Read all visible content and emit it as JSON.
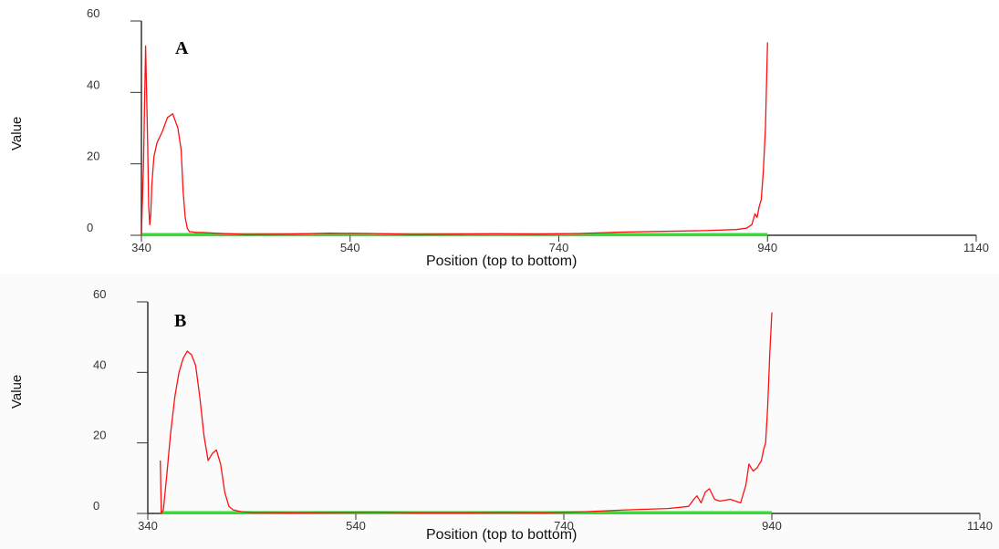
{
  "chart_data": [
    {
      "type": "line",
      "panel": "A",
      "xlabel": "Position (top to bottom)",
      "ylabel": "Value",
      "xlim": [
        340,
        1140
      ],
      "ylim": [
        0,
        60
      ],
      "xticks": [
        340,
        540,
        740,
        940,
        1140
      ],
      "yticks": [
        0,
        20,
        40,
        60
      ],
      "colors": {
        "profile": "#ff1010",
        "baseline": "#33dd33",
        "axis": "#333333"
      },
      "baseline": {
        "x": [
          340,
          940
        ],
        "y": [
          0,
          0
        ]
      },
      "series": [
        {
          "x": [
            340,
            342,
            344,
            345,
            346,
            347,
            348,
            349,
            350,
            352,
            355,
            360,
            365,
            370,
            375,
            378,
            380,
            382,
            384,
            386,
            388,
            392,
            398,
            410,
            440,
            480,
            520,
            560,
            600,
            640,
            680,
            720,
            760,
            800,
            840,
            880,
            910,
            920,
            925,
            928,
            930,
            932,
            934,
            936,
            938,
            940
          ],
          "y": [
            0,
            20,
            53,
            40,
            25,
            8,
            3,
            6,
            14,
            22,
            26,
            29,
            33,
            34,
            30,
            24,
            12,
            5,
            2,
            1,
            1,
            0.8,
            0.8,
            0.6,
            0.2,
            0.3,
            0.6,
            0.5,
            0.2,
            0.3,
            0.4,
            0.3,
            0.5,
            0.9,
            1.1,
            1.3,
            1.6,
            2,
            3,
            6,
            5,
            8,
            10,
            18,
            30,
            54
          ]
        }
      ]
    },
    {
      "type": "line",
      "panel": "B",
      "xlabel": "Position (top to bottom)",
      "ylabel": "Value",
      "xlim": [
        340,
        1140
      ],
      "ylim": [
        0,
        60
      ],
      "xticks": [
        340,
        540,
        740,
        940,
        1140
      ],
      "yticks": [
        0,
        20,
        40,
        60
      ],
      "colors": {
        "profile": "#ff1010",
        "baseline": "#33dd33",
        "axis": "#333333"
      },
      "baseline": {
        "x": [
          352,
          940
        ],
        "y": [
          0,
          0
        ]
      },
      "series": [
        {
          "x": [
            352,
            353,
            355,
            358,
            362,
            366,
            370,
            374,
            378,
            382,
            386,
            390,
            394,
            398,
            402,
            406,
            410,
            414,
            418,
            422,
            430,
            440,
            480,
            520,
            560,
            600,
            640,
            680,
            720,
            760,
            800,
            840,
            860,
            865,
            868,
            872,
            876,
            880,
            885,
            890,
            900,
            910,
            915,
            918,
            922,
            926,
            930,
            932,
            934,
            936,
            938,
            940
          ],
          "y": [
            15,
            0,
            1,
            10,
            23,
            33,
            40,
            44,
            46,
            45,
            42,
            33,
            22,
            15,
            17,
            18,
            14,
            6,
            2,
            1,
            0.5,
            0.3,
            0.2,
            0.3,
            0.4,
            0.2,
            0.2,
            0.3,
            0.2,
            0.5,
            1,
            1.4,
            2,
            4,
            5,
            3,
            6,
            7,
            4,
            3.5,
            4,
            3,
            8,
            14,
            12,
            13,
            15,
            18,
            20,
            30,
            45,
            57
          ]
        }
      ]
    }
  ],
  "panels": [
    {
      "letter": "A",
      "ylabel": "Value",
      "xlabel": "Position (top to bottom)",
      "xtick_labels": [
        "340",
        "540",
        "740",
        "940",
        "1140"
      ],
      "ytick_labels": [
        "0",
        "20",
        "40",
        "60"
      ]
    },
    {
      "letter": "B",
      "ylabel": "Value",
      "xlabel": "Position (top to bottom)",
      "xtick_labels": [
        "340",
        "540",
        "740",
        "940",
        "1140"
      ],
      "ytick_labels": [
        "0",
        "20",
        "40",
        "60"
      ]
    }
  ]
}
